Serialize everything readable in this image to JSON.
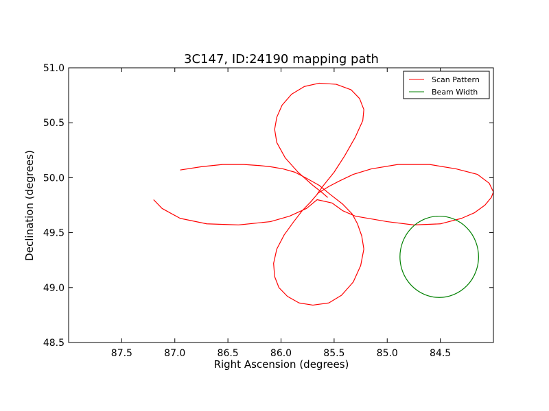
{
  "chart_data": {
    "type": "line",
    "title": "3C147, ID:24190 mapping path",
    "xlabel": "Right Ascension (degrees)",
    "ylabel": "Declination (degrees)",
    "xlim": [
      88.0,
      84.0
    ],
    "ylim": [
      48.5,
      51.0
    ],
    "x_reversed": true,
    "xticks": [
      87.5,
      87.0,
      86.5,
      86.0,
      85.5,
      85.0,
      84.5
    ],
    "xtick_labels": [
      "87.5",
      "87.0",
      "86.5",
      "86.0",
      "85.5",
      "85.0",
      "84.5"
    ],
    "yticks": [
      48.5,
      49.0,
      49.5,
      50.0,
      50.5,
      51.0
    ],
    "ytick_labels": [
      "48.5",
      "49.0",
      "49.5",
      "50.0",
      "50.5",
      "51.0"
    ],
    "grid": false,
    "legend_position": "top-right",
    "series": [
      {
        "name": "Scan Pattern",
        "color": "#ff0000",
        "kind": "line",
        "x": [
          87.2,
          87.12,
          86.95,
          86.7,
          86.4,
          86.1,
          85.92,
          85.76,
          85.66,
          85.52,
          85.42,
          85.3,
          85.0,
          84.75,
          84.5,
          84.3,
          84.18,
          84.08,
          84.02,
          84.0,
          84.04,
          84.15,
          84.35,
          84.6,
          84.9,
          85.15,
          85.32,
          85.45,
          85.55,
          85.65,
          85.72,
          85.8,
          85.88,
          85.97,
          86.04,
          86.07,
          86.06,
          86.02,
          85.94,
          85.83,
          85.7,
          85.55,
          85.43,
          85.32,
          85.25,
          85.22,
          85.24,
          85.28,
          85.33,
          85.42,
          85.54,
          85.64,
          85.77,
          85.87,
          85.98,
          86.1,
          86.2,
          86.35,
          86.55,
          86.75,
          86.95
        ],
        "y": [
          49.8,
          49.72,
          49.63,
          49.58,
          49.57,
          49.6,
          49.65,
          49.72,
          49.8,
          49.77,
          49.7,
          49.65,
          49.6,
          49.57,
          49.58,
          49.63,
          49.68,
          49.75,
          49.82,
          49.87,
          49.95,
          50.03,
          50.08,
          50.12,
          50.12,
          50.08,
          50.03,
          49.97,
          49.92,
          49.86,
          49.78,
          49.7,
          49.6,
          49.48,
          49.35,
          49.22,
          49.1,
          49.0,
          48.92,
          48.86,
          48.84,
          48.86,
          48.93,
          49.05,
          49.2,
          49.35,
          49.47,
          49.58,
          49.67,
          49.76,
          49.85,
          49.93,
          50.0,
          50.05,
          50.08,
          50.1,
          50.11,
          50.12,
          50.12,
          50.1,
          50.07
        ]
      },
      {
        "name": "Scan Pattern",
        "color": "#ff0000",
        "kind": "line",
        "x": [
          85.66,
          85.6,
          85.5,
          85.4,
          85.3,
          85.23,
          85.22,
          85.26,
          85.34,
          85.48,
          85.64,
          85.78,
          85.9,
          85.99,
          86.04,
          86.06,
          86.04,
          85.96,
          85.84,
          85.7,
          85.62,
          85.56
        ],
        "y": [
          49.85,
          49.93,
          50.05,
          50.2,
          50.37,
          50.52,
          50.62,
          50.72,
          50.8,
          50.85,
          50.86,
          50.83,
          50.76,
          50.66,
          50.55,
          50.44,
          50.32,
          50.18,
          50.05,
          49.93,
          49.87,
          49.82
        ]
      },
      {
        "name": "Beam Width",
        "color": "#008000",
        "kind": "circle",
        "center": [
          84.51,
          49.28
        ],
        "radius": 0.37
      }
    ]
  },
  "legend": {
    "items": [
      {
        "label": "Scan Pattern",
        "color": "#ff0000"
      },
      {
        "label": "Beam Width",
        "color": "#008000"
      }
    ]
  }
}
